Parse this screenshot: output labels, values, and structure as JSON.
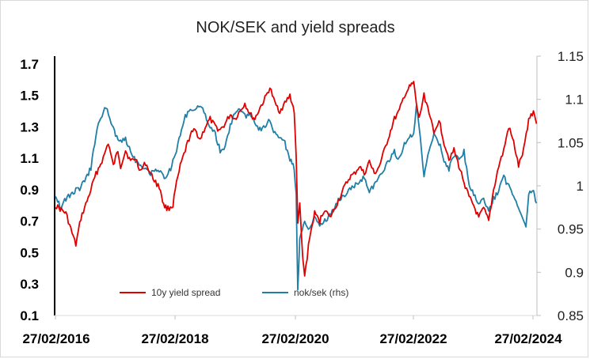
{
  "chart_data": {
    "type": "line",
    "title": "NOK/SEK and yield spreads",
    "x_ticks": [
      "27/02/2016",
      "27/02/2018",
      "27/02/2020",
      "27/02/2022",
      "27/02/2024"
    ],
    "y_left": {
      "ticks": [
        "0.1",
        "0.3",
        "0.5",
        "0.7",
        "0.9",
        "1.1",
        "1.3",
        "1.5",
        "1.7"
      ],
      "range": [
        0.1,
        1.75
      ]
    },
    "y_right": {
      "ticks": [
        "0.85",
        "0.9",
        "0.95",
        "1",
        "1.05",
        "1.1",
        "1.15"
      ],
      "range": [
        0.85,
        1.15
      ]
    },
    "grid": false,
    "legend_position": "bottom-inside",
    "series": [
      {
        "name": "10y yield spread",
        "axis": "left",
        "color": "#e00000",
        "points": [
          [
            "2016-02-27",
            0.8
          ],
          [
            "2016-05-01",
            0.75
          ],
          [
            "2016-06-15",
            0.6
          ],
          [
            "2016-07-01",
            0.55
          ],
          [
            "2016-08-01",
            0.72
          ],
          [
            "2016-09-15",
            0.85
          ],
          [
            "2016-11-01",
            1.0
          ],
          [
            "2016-12-15",
            1.1
          ],
          [
            "2017-01-15",
            1.2
          ],
          [
            "2017-02-15",
            1.05
          ],
          [
            "2017-03-15",
            1.15
          ],
          [
            "2017-04-01",
            1.05
          ],
          [
            "2017-05-01",
            1.15
          ],
          [
            "2017-06-01",
            1.08
          ],
          [
            "2017-07-01",
            1.1
          ],
          [
            "2017-08-01",
            1.02
          ],
          [
            "2017-09-01",
            1.07
          ],
          [
            "2017-10-01",
            1.0
          ],
          [
            "2017-11-01",
            0.95
          ],
          [
            "2017-12-01",
            0.9
          ],
          [
            "2017-12-20",
            0.8
          ],
          [
            "2018-01-15",
            0.78
          ],
          [
            "2018-02-15",
            0.8
          ],
          [
            "2018-03-01",
            0.9
          ],
          [
            "2018-04-01",
            1.05
          ],
          [
            "2018-05-01",
            1.15
          ],
          [
            "2018-06-01",
            1.25
          ],
          [
            "2018-07-01",
            1.28
          ],
          [
            "2018-08-01",
            1.22
          ],
          [
            "2018-09-01",
            1.3
          ],
          [
            "2018-10-01",
            1.35
          ],
          [
            "2018-11-01",
            1.3
          ],
          [
            "2018-12-01",
            1.28
          ],
          [
            "2019-01-01",
            1.32
          ],
          [
            "2019-02-01",
            1.38
          ],
          [
            "2019-03-01",
            1.35
          ],
          [
            "2019-04-01",
            1.4
          ],
          [
            "2019-05-01",
            1.45
          ],
          [
            "2019-06-01",
            1.38
          ],
          [
            "2019-07-01",
            1.35
          ],
          [
            "2019-08-01",
            1.42
          ],
          [
            "2019-09-01",
            1.48
          ],
          [
            "2019-10-01",
            1.55
          ],
          [
            "2019-11-01",
            1.45
          ],
          [
            "2019-12-01",
            1.4
          ],
          [
            "2020-01-01",
            1.45
          ],
          [
            "2020-02-01",
            1.5
          ],
          [
            "2020-02-27",
            1.4
          ],
          [
            "2020-03-10",
            1.1
          ],
          [
            "2020-03-20",
            0.7
          ],
          [
            "2020-04-01",
            0.8
          ],
          [
            "2020-04-20",
            0.45
          ],
          [
            "2020-05-01",
            0.35
          ],
          [
            "2020-06-01",
            0.6
          ],
          [
            "2020-07-01",
            0.75
          ],
          [
            "2020-08-01",
            0.7
          ],
          [
            "2020-09-01",
            0.78
          ],
          [
            "2020-10-01",
            0.72
          ],
          [
            "2020-11-01",
            0.78
          ],
          [
            "2020-12-01",
            0.85
          ],
          [
            "2021-01-01",
            0.92
          ],
          [
            "2021-02-01",
            0.98
          ],
          [
            "2021-03-01",
            1.0
          ],
          [
            "2021-04-01",
            1.05
          ],
          [
            "2021-05-01",
            1.0
          ],
          [
            "2021-06-01",
            1.08
          ],
          [
            "2021-07-01",
            1.0
          ],
          [
            "2021-08-01",
            1.05
          ],
          [
            "2021-09-01",
            1.15
          ],
          [
            "2021-10-01",
            1.25
          ],
          [
            "2021-11-01",
            1.35
          ],
          [
            "2021-12-01",
            1.4
          ],
          [
            "2022-01-01",
            1.5
          ],
          [
            "2022-02-01",
            1.55
          ],
          [
            "2022-02-27",
            1.58
          ],
          [
            "2022-03-15",
            1.45
          ],
          [
            "2022-04-01",
            1.35
          ],
          [
            "2022-05-01",
            1.5
          ],
          [
            "2022-06-01",
            1.4
          ],
          [
            "2022-07-01",
            1.25
          ],
          [
            "2022-08-01",
            1.35
          ],
          [
            "2022-09-01",
            1.2
          ],
          [
            "2022-10-01",
            1.1
          ],
          [
            "2022-11-01",
            1.15
          ],
          [
            "2022-12-01",
            1.05
          ],
          [
            "2023-01-01",
            0.95
          ],
          [
            "2023-02-01",
            0.85
          ],
          [
            "2023-03-01",
            0.8
          ],
          [
            "2023-04-01",
            0.72
          ],
          [
            "2023-05-01",
            0.78
          ],
          [
            "2023-06-01",
            0.7
          ],
          [
            "2023-07-01",
            0.9
          ],
          [
            "2023-08-01",
            1.05
          ],
          [
            "2023-09-01",
            1.15
          ],
          [
            "2023-10-01",
            1.3
          ],
          [
            "2023-11-01",
            1.2
          ],
          [
            "2023-12-01",
            1.05
          ],
          [
            "2024-01-01",
            1.15
          ],
          [
            "2024-02-01",
            1.35
          ],
          [
            "2024-03-01",
            1.4
          ],
          [
            "2024-03-20",
            1.32
          ]
        ]
      },
      {
        "name": "nok/sek (rhs)",
        "axis": "right",
        "color": "#1f7fa6",
        "points": [
          [
            "2016-02-27",
            0.99
          ],
          [
            "2016-04-01",
            0.975
          ],
          [
            "2016-05-01",
            0.985
          ],
          [
            "2016-06-01",
            0.99
          ],
          [
            "2016-07-01",
            0.995
          ],
          [
            "2016-08-01",
            0.998
          ],
          [
            "2016-09-01",
            1.01
          ],
          [
            "2016-10-01",
            1.02
          ],
          [
            "2016-11-01",
            1.06
          ],
          [
            "2016-12-01",
            1.08
          ],
          [
            "2017-01-01",
            1.09
          ],
          [
            "2017-02-01",
            1.075
          ],
          [
            "2017-03-01",
            1.06
          ],
          [
            "2017-04-01",
            1.05
          ],
          [
            "2017-05-01",
            1.055
          ],
          [
            "2017-06-01",
            1.04
          ],
          [
            "2017-07-01",
            1.03
          ],
          [
            "2017-08-01",
            1.025
          ],
          [
            "2017-09-01",
            1.02
          ],
          [
            "2017-10-01",
            1.015
          ],
          [
            "2017-11-01",
            1.02
          ],
          [
            "2017-12-01",
            1.015
          ],
          [
            "2018-01-01",
            1.01
          ],
          [
            "2018-02-01",
            1.02
          ],
          [
            "2018-03-01",
            1.035
          ],
          [
            "2018-04-01",
            1.06
          ],
          [
            "2018-05-01",
            1.08
          ],
          [
            "2018-06-01",
            1.09
          ],
          [
            "2018-07-01",
            1.085
          ],
          [
            "2018-08-01",
            1.095
          ],
          [
            "2018-09-01",
            1.08
          ],
          [
            "2018-10-01",
            1.07
          ],
          [
            "2018-11-01",
            1.06
          ],
          [
            "2018-12-01",
            1.04
          ],
          [
            "2019-01-01",
            1.045
          ],
          [
            "2019-02-01",
            1.07
          ],
          [
            "2019-03-01",
            1.085
          ],
          [
            "2019-04-01",
            1.09
          ],
          [
            "2019-05-01",
            1.08
          ],
          [
            "2019-06-01",
            1.085
          ],
          [
            "2019-07-01",
            1.075
          ],
          [
            "2019-08-01",
            1.065
          ],
          [
            "2019-09-01",
            1.07
          ],
          [
            "2019-10-01",
            1.075
          ],
          [
            "2019-11-01",
            1.06
          ],
          [
            "2019-12-01",
            1.055
          ],
          [
            "2020-01-01",
            1.05
          ],
          [
            "2020-02-01",
            1.03
          ],
          [
            "2020-02-27",
            1.02
          ],
          [
            "2020-03-10",
            0.99
          ],
          [
            "2020-03-20",
            0.88
          ],
          [
            "2020-03-25",
            0.9
          ],
          [
            "2020-04-01",
            0.94
          ],
          [
            "2020-05-01",
            0.96
          ],
          [
            "2020-06-01",
            0.95
          ],
          [
            "2020-07-01",
            0.965
          ],
          [
            "2020-08-01",
            0.955
          ],
          [
            "2020-09-01",
            0.96
          ],
          [
            "2020-10-01",
            0.965
          ],
          [
            "2020-11-01",
            0.975
          ],
          [
            "2020-12-01",
            0.985
          ],
          [
            "2021-01-01",
            0.99
          ],
          [
            "2021-02-01",
            0.995
          ],
          [
            "2021-03-01",
            1.0
          ],
          [
            "2021-04-01",
            1.005
          ],
          [
            "2021-05-01",
            1.01
          ],
          [
            "2021-06-01",
            0.995
          ],
          [
            "2021-07-01",
            1.0
          ],
          [
            "2021-08-01",
            1.01
          ],
          [
            "2021-09-01",
            1.02
          ],
          [
            "2021-10-01",
            1.03
          ],
          [
            "2021-11-01",
            1.04
          ],
          [
            "2021-12-01",
            1.03
          ],
          [
            "2022-01-01",
            1.05
          ],
          [
            "2022-02-01",
            1.055
          ],
          [
            "2022-02-27",
            1.06
          ],
          [
            "2022-03-15",
            1.09
          ],
          [
            "2022-04-01",
            1.07
          ],
          [
            "2022-05-01",
            1.01
          ],
          [
            "2022-06-01",
            1.04
          ],
          [
            "2022-07-01",
            1.06
          ],
          [
            "2022-08-01",
            1.05
          ],
          [
            "2022-09-01",
            1.03
          ],
          [
            "2022-10-01",
            1.02
          ],
          [
            "2022-11-01",
            1.035
          ],
          [
            "2022-12-01",
            1.03
          ],
          [
            "2023-01-01",
            1.04
          ],
          [
            "2023-02-01",
            1.0
          ],
          [
            "2023-03-01",
            0.99
          ],
          [
            "2023-04-01",
            0.98
          ],
          [
            "2023-05-01",
            0.985
          ],
          [
            "2023-06-01",
            0.97
          ],
          [
            "2023-07-01",
            0.985
          ],
          [
            "2023-08-01",
            0.995
          ],
          [
            "2023-09-01",
            1.01
          ],
          [
            "2023-10-01",
            1.0
          ],
          [
            "2023-11-01",
            0.99
          ],
          [
            "2023-12-01",
            0.975
          ],
          [
            "2024-01-01",
            0.96
          ],
          [
            "2024-01-15",
            0.955
          ],
          [
            "2024-02-01",
            0.99
          ],
          [
            "2024-03-01",
            0.995
          ],
          [
            "2024-03-20",
            0.98
          ]
        ]
      }
    ]
  }
}
